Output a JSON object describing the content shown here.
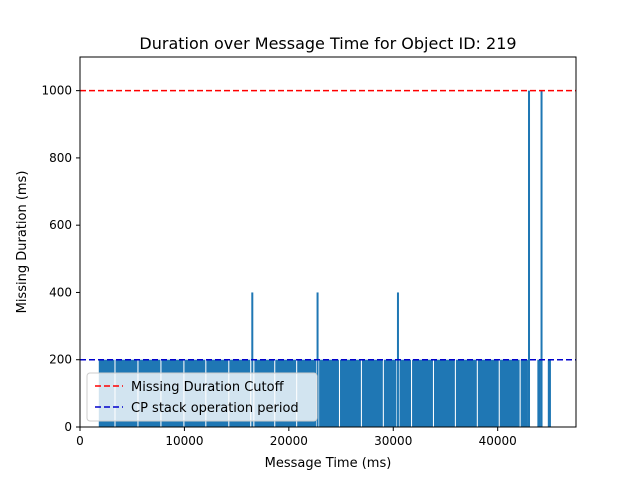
{
  "chart_data": {
    "type": "bar",
    "title": "Duration over Message Time for Object ID: 219",
    "xlabel": "Message Time (ms)",
    "ylabel": "Missing Duration (ms)",
    "xlim": [
      0,
      47500
    ],
    "ylim": [
      0,
      1100
    ],
    "xticks": [
      0,
      10000,
      20000,
      30000,
      40000
    ],
    "yticks": [
      0,
      200,
      400,
      600,
      800,
      1000
    ],
    "bar_color": "#1f77b4",
    "block_bars": [
      {
        "start": 1800,
        "end": 3300,
        "value": 200
      },
      {
        "start": 3400,
        "end": 5500,
        "value": 200
      },
      {
        "start": 5600,
        "end": 7700,
        "value": 200
      },
      {
        "start": 7800,
        "end": 9900,
        "value": 200
      },
      {
        "start": 10000,
        "end": 12000,
        "value": 200
      },
      {
        "start": 12100,
        "end": 14200,
        "value": 200
      },
      {
        "start": 14300,
        "end": 16300,
        "value": 200
      },
      {
        "start": 16700,
        "end": 18600,
        "value": 200
      },
      {
        "start": 18700,
        "end": 20700,
        "value": 200
      },
      {
        "start": 20800,
        "end": 22600,
        "value": 200
      },
      {
        "start": 22900,
        "end": 24800,
        "value": 200
      },
      {
        "start": 24900,
        "end": 26900,
        "value": 200
      },
      {
        "start": 27000,
        "end": 29000,
        "value": 200
      },
      {
        "start": 29100,
        "end": 30300,
        "value": 200
      },
      {
        "start": 30600,
        "end": 31700,
        "value": 200
      },
      {
        "start": 31800,
        "end": 33800,
        "value": 200
      },
      {
        "start": 33900,
        "end": 35900,
        "value": 200
      },
      {
        "start": 36000,
        "end": 38000,
        "value": 200
      },
      {
        "start": 38100,
        "end": 40100,
        "value": 200
      },
      {
        "start": 40200,
        "end": 42100,
        "value": 200
      },
      {
        "start": 42200,
        "end": 42900,
        "value": 200
      },
      {
        "start": 43800,
        "end": 44100,
        "value": 200
      },
      {
        "start": 44800,
        "end": 45100,
        "value": 200
      }
    ],
    "spike_bars": [
      {
        "x": 16500,
        "value": 400
      },
      {
        "x": 22750,
        "value": 400
      },
      {
        "x": 30450,
        "value": 400
      },
      {
        "x": 43000,
        "value": 1000
      },
      {
        "x": 44200,
        "value": 1000
      }
    ],
    "reference_lines": [
      {
        "name": "Missing Duration Cutoff",
        "y": 1000,
        "color": "#ff0000",
        "style": "dashed"
      },
      {
        "name": "CP stack operation period",
        "y": 200,
        "color": "#0000cc",
        "style": "dashed"
      }
    ],
    "legend_position": "lower-left"
  }
}
